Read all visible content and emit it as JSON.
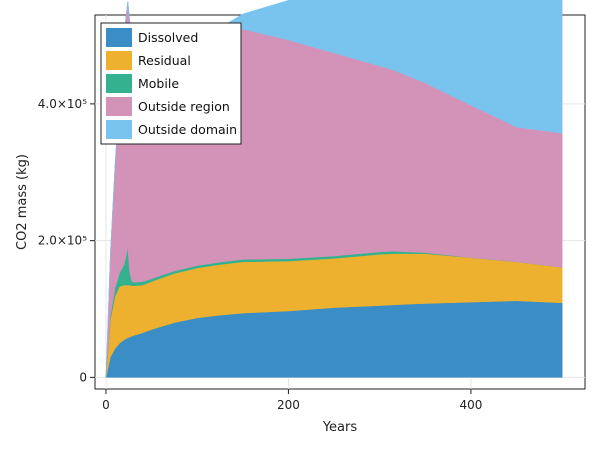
{
  "chart_data": {
    "type": "area",
    "stacked": true,
    "xlabel": "Years",
    "ylabel": "CO2 mass (kg)",
    "xlim": [
      -12,
      525
    ],
    "ylim": [
      -17000,
      530000
    ],
    "x_ticks": [
      {
        "value": 0,
        "label": "0"
      },
      {
        "value": 200,
        "label": "200"
      },
      {
        "value": 400,
        "label": "400"
      }
    ],
    "y_ticks": [
      {
        "value": 0,
        "label": "0"
      },
      {
        "value": 200000,
        "label": "2.0×10⁵"
      },
      {
        "value": 400000,
        "label": "4.0×10⁵"
      }
    ],
    "grid": true,
    "legend_position": "top-left",
    "x": [
      0,
      5,
      10,
      15,
      20,
      24,
      26,
      28,
      30,
      40,
      50,
      60,
      75,
      100,
      125,
      150,
      200,
      250,
      300,
      315,
      330,
      350,
      400,
      450,
      500
    ],
    "series": [
      {
        "name": "Dissolved",
        "color": "#3a8dc5",
        "values": [
          0,
          30000,
          42000,
          50000,
          55000,
          58000,
          59000,
          60000,
          61000,
          65000,
          70000,
          74000,
          80000,
          87000,
          91000,
          94000,
          97000,
          102000,
          105000,
          106000,
          107000,
          108000,
          110000,
          112000,
          109000
        ]
      },
      {
        "name": "Residual",
        "color": "#edb12f",
        "values": [
          0,
          55000,
          77000,
          83000,
          80000,
          77000,
          76000,
          74000,
          73000,
          70000,
          70000,
          71000,
          72000,
          73000,
          74000,
          75000,
          73000,
          72000,
          75000,
          75000,
          74000,
          73000,
          65000,
          57000,
          52000
        ]
      },
      {
        "name": "Mobile",
        "color": "#34b18f",
        "values": [
          0,
          5000,
          12000,
          20000,
          30000,
          55000,
          20000,
          8000,
          5000,
          5000,
          4000,
          4000,
          3500,
          3500,
          3500,
          3500,
          3500,
          3500,
          3500,
          3500,
          2500,
          1500,
          0,
          0,
          0
        ]
      },
      {
        "name": "Outside region",
        "color": "#d392b8",
        "values": [
          0,
          95000,
          180000,
          265000,
          340000,
          360000,
          367000,
          367000,
          368000,
          368000,
          364000,
          359000,
          352000,
          344000,
          339000,
          337000,
          320000,
          297000,
          272000,
          265000,
          258000,
          248000,
          223000,
          197000,
          196000
        ]
      },
      {
        "name": "Outside domain",
        "color": "#79c4ef",
        "values": [
          0,
          0,
          0,
          0,
          0,
          0,
          0,
          0,
          0,
          0,
          0,
          0,
          0,
          0,
          4000,
          22000,
          58000,
          94000,
          130000,
          141000,
          151000,
          166000,
          201000,
          235000,
          254000
        ]
      }
    ]
  }
}
